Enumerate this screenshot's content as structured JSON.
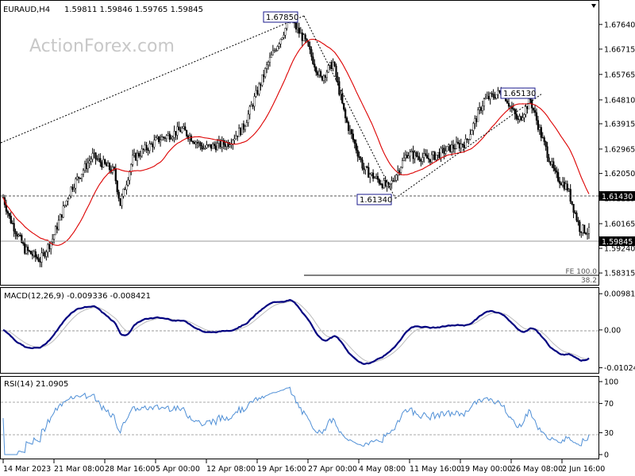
{
  "header": {
    "symbol": "EURAUD,H4",
    "ohlc": "1.59811 1.59846 1.59765 1.59845"
  },
  "watermark": "ActionForex.com",
  "colors": {
    "candle": "#000000",
    "ma": "#dd0000",
    "macd": "#000080",
    "signal": "#bbbbbb",
    "rsi": "#4f8fd6",
    "annotation_border": "#1a1a8c",
    "price_tag_bg": "#000000",
    "watermark": "#c8c8c8"
  },
  "chart_data": [
    {
      "type": "candlestick",
      "series": [
        {
          "name": "Price",
          "values": []
        },
        {
          "name": "MA",
          "values": []
        }
      ],
      "y_axis": {
        "ticks": [
          "1.67640",
          "1.66715",
          "1.65765",
          "1.64810",
          "1.63915",
          "1.62965",
          "1.62050",
          "1.61115",
          "1.60165",
          "1.59240",
          "1.58315"
        ],
        "ylim": [
          1.5805,
          1.6832
        ]
      },
      "price_tags": {
        "level": "1.61430",
        "last": "1.59845"
      },
      "annotations": {
        "high1": "1.67850",
        "low1": "1.61340",
        "high2": "1.65130",
        "fe_label": "FE 100.0",
        "fe_sub": "38.2"
      }
    },
    {
      "type": "line",
      "label": "MACD(12,26,9) -0.009336 -0.008421",
      "series": [
        {
          "name": "MACD",
          "values": []
        },
        {
          "name": "Signal",
          "values": []
        }
      ],
      "y_axis": {
        "ticks": [
          "0.00981",
          "0.00",
          "-0.010248"
        ],
        "ylim": [
          -0.0112,
          0.0105
        ]
      }
    },
    {
      "type": "line",
      "label": "RSI(14) 21.0905",
      "series": [
        {
          "name": "RSI",
          "values": []
        }
      ],
      "y_axis": {
        "ticks": [
          "100",
          "70",
          "30",
          "0"
        ],
        "levels": [
          70,
          30
        ],
        "ylim": [
          0,
          100
        ]
      }
    }
  ],
  "x_axis": {
    "labels": [
      "14 Mar 2023",
      "21 Mar 08:00",
      "28 Mar 16:00",
      "5 Apr 00:00",
      "12 Apr 08:00",
      "19 Apr 16:00",
      "27 Apr 00:00",
      "4 May 08:00",
      "11 May 16:00",
      "19 May 00:00",
      "26 May 08:00",
      "2 Jun 16:00"
    ]
  }
}
